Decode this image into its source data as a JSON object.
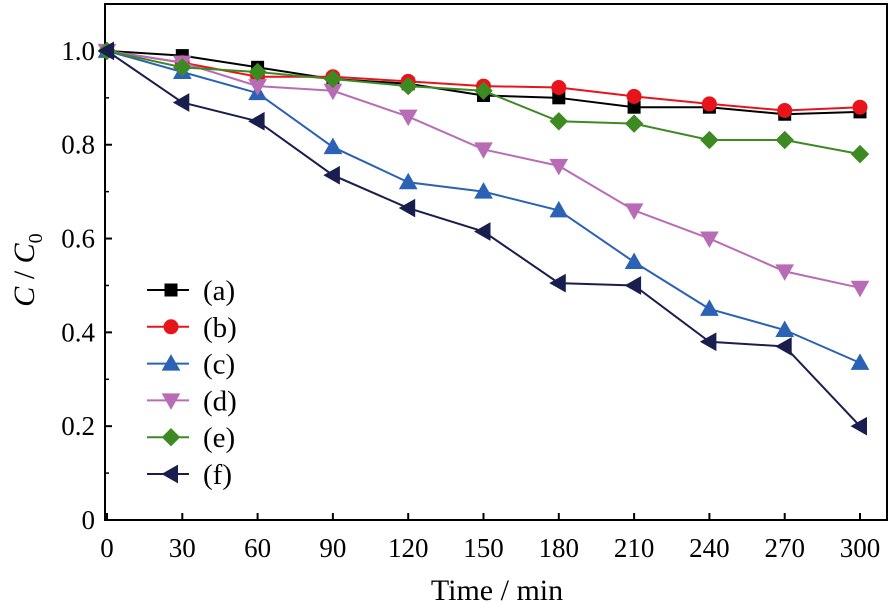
{
  "chart_data": {
    "type": "line",
    "xlabel": "Time / min",
    "ylabel_main": "C",
    "ylabel_sep": " / ",
    "ylabel_denom": "C",
    "ylabel_sub": "0",
    "xlim": [
      0,
      300
    ],
    "ylim": [
      0,
      1.1
    ],
    "x_ticks": [
      0,
      30,
      60,
      90,
      120,
      150,
      180,
      210,
      240,
      270,
      300
    ],
    "x_tick_labels": [
      "0",
      "30",
      "60",
      "90",
      "120",
      "150",
      "180",
      "210",
      "240",
      "270",
      "300"
    ],
    "y_ticks": [
      0,
      0.2,
      0.4,
      0.6,
      0.8,
      1.0
    ],
    "y_tick_labels": [
      "0",
      "0.2",
      "0.4",
      "0.6",
      "0.8",
      "1.0"
    ],
    "grid": false,
    "legend_position": "center-left",
    "x": [
      0,
      30,
      60,
      90,
      120,
      150,
      180,
      210,
      240,
      270,
      300
    ],
    "series": [
      {
        "name": "(a)",
        "color": "#000000",
        "marker": "square",
        "values": [
          1.0,
          0.99,
          0.965,
          0.94,
          0.93,
          0.905,
          0.9,
          0.88,
          0.88,
          0.865,
          0.87
        ]
      },
      {
        "name": "(b)",
        "color": "#e8141c",
        "marker": "circle",
        "values": [
          1.0,
          0.975,
          0.945,
          0.945,
          0.935,
          0.925,
          0.922,
          0.903,
          0.887,
          0.873,
          0.88
        ]
      },
      {
        "name": "(c)",
        "color": "#2b62b5",
        "marker": "triangle-up",
        "values": [
          1.0,
          0.955,
          0.91,
          0.795,
          0.72,
          0.7,
          0.66,
          0.55,
          0.45,
          0.405,
          0.335
        ]
      },
      {
        "name": "(d)",
        "color": "#b96cb6",
        "marker": "triangle-down",
        "values": [
          1.0,
          0.975,
          0.925,
          0.915,
          0.86,
          0.79,
          0.755,
          0.66,
          0.6,
          0.53,
          0.495
        ]
      },
      {
        "name": "(e)",
        "color": "#3e8a22",
        "marker": "diamond",
        "values": [
          1.0,
          0.965,
          0.955,
          0.94,
          0.925,
          0.915,
          0.85,
          0.845,
          0.81,
          0.81,
          0.78
        ]
      },
      {
        "name": "(f)",
        "color": "#1a1e4f",
        "marker": "triangle-left",
        "values": [
          1.0,
          0.89,
          0.85,
          0.735,
          0.665,
          0.615,
          0.505,
          0.5,
          0.38,
          0.37,
          0.2
        ]
      }
    ]
  }
}
